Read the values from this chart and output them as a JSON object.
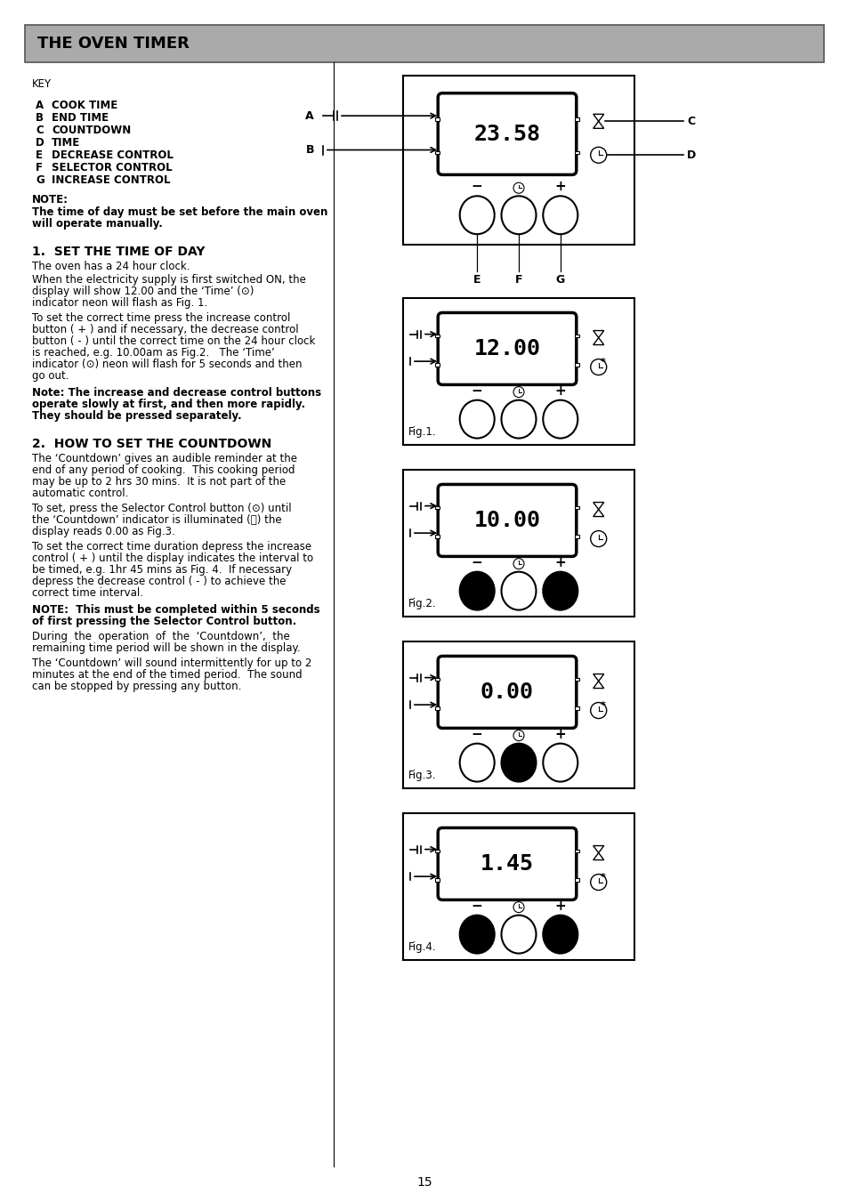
{
  "title": "THE OVEN TIMER",
  "title_bg": "#999999",
  "page_bg": "#ffffff",
  "page_number": "15",
  "key_label": "KEY",
  "key_items": [
    [
      "A",
      "COOK TIME"
    ],
    [
      "B",
      "END TIME"
    ],
    [
      "C",
      "COUNTDOWN"
    ],
    [
      "D",
      "TIME"
    ],
    [
      "E",
      "DECREASE CONTROL"
    ],
    [
      "F",
      "SELECTOR CONTROL"
    ],
    [
      "G",
      "INCREASE CONTROL"
    ]
  ],
  "note_label": "NOTE:",
  "note_text": "The time of day must be set before the main oven\nwill operate manually.",
  "section1_title": "1.  SET THE TIME OF DAY",
  "section1_text1": "The oven has a 24 hour clock.",
  "section1_text2": "When the electricity supply is first switched ON, the\ndisplay will show 12.00 and the ‘Time’ (⊙)\nindicator neon will flash as Fig. 1.",
  "section1_text3": "To set the correct time press the increase control\nbutton ( + ) and if necessary, the decrease control\nbutton ( - ) until the correct time on the 24 hour clock\nis reached, e.g. 10.00am as Fig.2.   The ‘Time’\nindicator (⊙) neon will flash for 5 seconds and then\ngo out.",
  "section1_note": "Note: The increase and decrease control buttons\noperate slowly at first, and then more rapidly.\nThey should be pressed separately.",
  "section2_title": "2.  HOW TO SET THE COUNTDOWN",
  "section2_text1": "The ‘Countdown’ gives an audible reminder at the\nend of any period of cooking.  This cooking period\nmay be up to 2 hrs 30 mins.  It is not part of the\nautomatic control.",
  "section2_text2": "To set, press the Selector Control button (⊙) until\nthe ‘Countdown’ indicator is illuminated (⧅) the\ndisplay reads 0.00 as Fig.3.",
  "section2_text3": "To set the correct time duration depress the increase\ncontrol ( + ) until the display indicates the interval to\nbe timed, e.g. 1hr 45 mins as Fig. 4.  If necessary\ndepress the decrease control ( - ) to achieve the\ncorrect time interval.",
  "section2_note": "NOTE:  This must be completed within 5 seconds\nof first pressing the Selector Control button.",
  "section2_text4": "During  the  operation  of  the  ‘Countdown’,  the\nremaining time period will be shown in the display.",
  "section2_text5": "The ‘Countdown’ will sound intermittently for up to 2\nminutes at the end of the timed period.  The sound\ncan be stopped by pressing any button.",
  "fig_configs": [
    {
      "display": "23.58",
      "label": "",
      "btns": [
        false,
        false,
        false
      ],
      "has_star": false,
      "main": true
    },
    {
      "display": "12.00",
      "label": "Fig.1.",
      "btns": [
        false,
        false,
        false
      ],
      "has_star": true,
      "main": false
    },
    {
      "display": "10.00",
      "label": "Fig.2.",
      "btns": [
        true,
        false,
        true
      ],
      "has_star": false,
      "main": false
    },
    {
      "display": "0.00",
      "label": "Fig.3.",
      "btns": [
        false,
        true,
        false
      ],
      "has_star": true,
      "main": false
    },
    {
      "display": "1.45",
      "label": "Fig.4.",
      "btns": [
        true,
        false,
        true
      ],
      "has_star": true,
      "main": false
    }
  ]
}
